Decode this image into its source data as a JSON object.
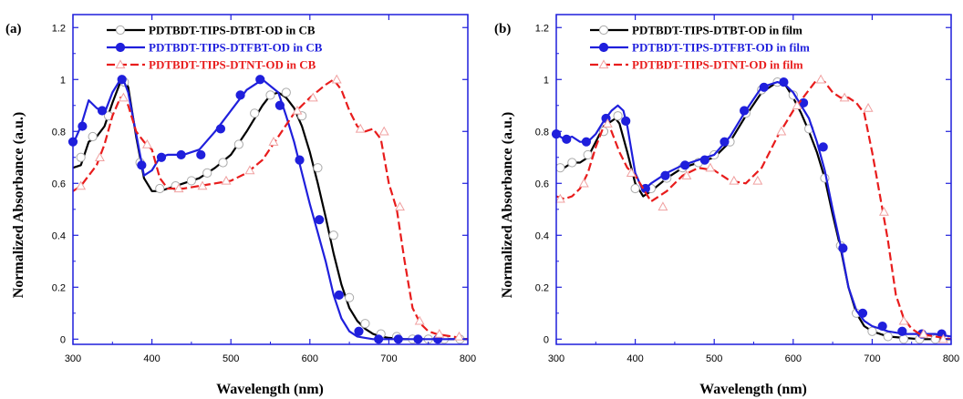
{
  "chart_data": [
    {
      "type": "line",
      "panel_label": "(a)",
      "xlabel": "Wavelength (nm)",
      "ylabel": "Normalized Absorbance (a.u.)",
      "xlim": [
        300,
        800
      ],
      "ylim": [
        -0.02,
        1.25
      ],
      "xticks": [
        300,
        400,
        500,
        600,
        700,
        800
      ],
      "yticks": [
        0,
        0.2,
        0.4,
        0.6,
        0.8,
        1,
        1.2
      ],
      "xtick_labels": [
        "300",
        "400",
        "500",
        "600",
        "700",
        "800"
      ],
      "ytick_labels": [
        "0",
        "0.2",
        "0.4",
        "0.6",
        "0.8",
        "1",
        "1.2"
      ],
      "grid": false,
      "legend_position": "top-left",
      "series": [
        {
          "name": "PDTBDT-TIPS-DTBT-OD in CB",
          "color": "#000000",
          "marker": "open-circle",
          "x": [
            300,
            310,
            320,
            330,
            340,
            350,
            360,
            365,
            370,
            380,
            390,
            400,
            410,
            420,
            440,
            460,
            480,
            500,
            520,
            540,
            550,
            560,
            570,
            580,
            590,
            600,
            610,
            620,
            630,
            640,
            650,
            660,
            670,
            680,
            690,
            700,
            720,
            740,
            760,
            780,
            800
          ],
          "y": [
            0.66,
            0.67,
            0.76,
            0.78,
            0.82,
            0.91,
            0.99,
            1.0,
            0.97,
            0.78,
            0.62,
            0.57,
            0.57,
            0.58,
            0.6,
            0.62,
            0.66,
            0.71,
            0.8,
            0.9,
            0.94,
            0.95,
            0.93,
            0.89,
            0.82,
            0.72,
            0.6,
            0.47,
            0.33,
            0.21,
            0.12,
            0.07,
            0.04,
            0.02,
            0.01,
            0.005,
            0.0,
            0.0,
            0.0,
            0.0,
            0.0
          ],
          "marker_x": [
            310,
            325,
            345,
            365,
            385,
            410,
            430,
            450,
            470,
            490,
            510,
            530,
            550,
            570,
            590,
            610,
            630,
            650,
            670,
            690,
            710,
            730,
            750,
            770,
            790
          ],
          "marker_y": [
            0.7,
            0.78,
            0.86,
            0.99,
            0.68,
            0.58,
            0.59,
            0.61,
            0.64,
            0.68,
            0.75,
            0.87,
            0.94,
            0.95,
            0.86,
            0.66,
            0.4,
            0.16,
            0.06,
            0.02,
            0.01,
            0.0,
            0.0,
            0.0,
            0.0
          ]
        },
        {
          "name": "PDTBDT-TIPS-DTFBT-OD in CB",
          "color": "#1f1fdc",
          "marker": "filled-circle",
          "x": [
            300,
            310,
            320,
            330,
            340,
            350,
            360,
            365,
            370,
            380,
            390,
            400,
            410,
            420,
            440,
            460,
            480,
            500,
            520,
            540,
            560,
            570,
            580,
            590,
            600,
            610,
            620,
            630,
            640,
            650,
            660,
            670,
            680,
            690,
            700,
            720,
            740,
            760,
            780,
            800
          ],
          "y": [
            0.75,
            0.82,
            0.92,
            0.89,
            0.87,
            0.95,
            1.0,
            0.99,
            0.95,
            0.79,
            0.63,
            0.65,
            0.7,
            0.71,
            0.71,
            0.73,
            0.8,
            0.88,
            0.96,
            1.0,
            0.95,
            0.86,
            0.76,
            0.64,
            0.52,
            0.41,
            0.3,
            0.17,
            0.08,
            0.03,
            0.01,
            0.005,
            0.0,
            0.0,
            0.0,
            0.0,
            0.0,
            0.0,
            0.0,
            0.0
          ],
          "marker_x": [
            300,
            312,
            337,
            362,
            387,
            412,
            437,
            462,
            487,
            512,
            537,
            562,
            587,
            612,
            637,
            662,
            687,
            712,
            737,
            762
          ],
          "marker_y": [
            0.76,
            0.82,
            0.88,
            1.0,
            0.67,
            0.7,
            0.71,
            0.71,
            0.81,
            0.94,
            1.0,
            0.9,
            0.69,
            0.46,
            0.17,
            0.03,
            0.0,
            0.0,
            0.0,
            0.0
          ]
        },
        {
          "name": "PDTBDT-TIPS-DTNT-OD in CB",
          "color": "#e81c1c",
          "marker": "open-triangle",
          "x": [
            300,
            310,
            320,
            330,
            340,
            350,
            360,
            365,
            370,
            380,
            390,
            400,
            410,
            420,
            440,
            460,
            480,
            500,
            520,
            540,
            560,
            580,
            600,
            620,
            630,
            640,
            650,
            660,
            670,
            680,
            690,
            700,
            710,
            720,
            730,
            740,
            750,
            760,
            780,
            800
          ],
          "y": [
            0.57,
            0.59,
            0.63,
            0.67,
            0.75,
            0.86,
            0.93,
            0.93,
            0.9,
            0.8,
            0.76,
            0.73,
            0.62,
            0.58,
            0.58,
            0.59,
            0.6,
            0.61,
            0.64,
            0.69,
            0.78,
            0.87,
            0.93,
            0.98,
            1.0,
            0.96,
            0.88,
            0.82,
            0.8,
            0.81,
            0.77,
            0.6,
            0.5,
            0.3,
            0.12,
            0.06,
            0.03,
            0.02,
            0.01,
            0.0
          ],
          "marker_x": [
            310,
            334,
            364,
            394,
            434,
            464,
            494,
            524,
            554,
            584,
            604,
            634,
            664,
            694,
            714,
            739,
            764,
            789
          ],
          "marker_y": [
            0.59,
            0.7,
            0.93,
            0.75,
            0.58,
            0.59,
            0.61,
            0.65,
            0.76,
            0.88,
            0.93,
            1.0,
            0.81,
            0.8,
            0.51,
            0.07,
            0.02,
            0.01
          ]
        }
      ]
    },
    {
      "type": "line",
      "panel_label": "(b)",
      "xlabel": "Wavelength (nm)",
      "ylabel": "Normalized Absorbance (a.u.)",
      "xlim": [
        300,
        800
      ],
      "ylim": [
        -0.02,
        1.25
      ],
      "xticks": [
        300,
        400,
        500,
        600,
        700,
        800
      ],
      "yticks": [
        0,
        0.2,
        0.4,
        0.6,
        0.8,
        1,
        1.2
      ],
      "xtick_labels": [
        "300",
        "400",
        "500",
        "600",
        "700",
        "800"
      ],
      "ytick_labels": [
        "0",
        "0.2",
        "0.4",
        "0.6",
        "0.8",
        "1",
        "1.2"
      ],
      "grid": false,
      "legend_position": "top-left",
      "series": [
        {
          "name": "PDTBDT-TIPS-DTBT-OD in film",
          "color": "#000000",
          "marker": "open-circle",
          "x": [
            300,
            310,
            320,
            330,
            340,
            350,
            360,
            370,
            375,
            380,
            390,
            400,
            410,
            420,
            440,
            460,
            480,
            500,
            520,
            540,
            560,
            580,
            590,
            600,
            610,
            620,
            630,
            640,
            650,
            660,
            670,
            680,
            690,
            700,
            720,
            740,
            760,
            780,
            800
          ],
          "y": [
            0.67,
            0.66,
            0.68,
            0.68,
            0.7,
            0.76,
            0.82,
            0.84,
            0.85,
            0.83,
            0.72,
            0.6,
            0.55,
            0.57,
            0.62,
            0.66,
            0.68,
            0.7,
            0.76,
            0.86,
            0.95,
            0.99,
            0.98,
            0.93,
            0.87,
            0.8,
            0.72,
            0.62,
            0.48,
            0.35,
            0.2,
            0.1,
            0.05,
            0.03,
            0.01,
            0.005,
            0.0,
            0.0,
            0.0
          ],
          "marker_x": [
            305,
            320,
            340,
            360,
            378,
            400,
            420,
            440,
            460,
            480,
            500,
            520,
            540,
            560,
            580,
            600,
            620,
            640,
            660,
            680,
            700,
            720,
            740,
            760,
            780
          ],
          "marker_y": [
            0.66,
            0.68,
            0.71,
            0.8,
            0.86,
            0.58,
            0.58,
            0.62,
            0.66,
            0.68,
            0.71,
            0.76,
            0.87,
            0.96,
            0.99,
            0.94,
            0.81,
            0.62,
            0.36,
            0.1,
            0.03,
            0.01,
            0.0,
            0.0,
            0.0
          ]
        },
        {
          "name": "PDTBDT-TIPS-DTFBT-OD in film",
          "color": "#1f1fdc",
          "marker": "filled-circle",
          "x": [
            300,
            310,
            320,
            330,
            340,
            350,
            360,
            370,
            378,
            385,
            390,
            400,
            410,
            420,
            440,
            460,
            480,
            500,
            520,
            540,
            560,
            580,
            590,
            600,
            610,
            620,
            630,
            640,
            650,
            660,
            670,
            680,
            690,
            700,
            720,
            740,
            760,
            780,
            800
          ],
          "y": [
            0.79,
            0.77,
            0.78,
            0.76,
            0.76,
            0.79,
            0.84,
            0.88,
            0.9,
            0.88,
            0.82,
            0.64,
            0.57,
            0.6,
            0.64,
            0.67,
            0.69,
            0.71,
            0.78,
            0.88,
            0.97,
            0.99,
            0.98,
            0.95,
            0.9,
            0.85,
            0.76,
            0.65,
            0.5,
            0.36,
            0.2,
            0.11,
            0.07,
            0.05,
            0.03,
            0.02,
            0.02,
            0.02,
            0.01
          ],
          "marker_x": [
            300,
            313,
            338,
            363,
            388,
            413,
            438,
            463,
            488,
            513,
            538,
            563,
            588,
            613,
            638,
            663,
            688,
            713,
            738,
            763,
            788
          ],
          "marker_y": [
            0.79,
            0.77,
            0.76,
            0.85,
            0.84,
            0.58,
            0.63,
            0.67,
            0.69,
            0.76,
            0.88,
            0.97,
            0.99,
            0.91,
            0.74,
            0.35,
            0.1,
            0.05,
            0.03,
            0.02,
            0.02
          ]
        },
        {
          "name": "PDTBDT-TIPS-DTNT-OD in film",
          "color": "#e81c1c",
          "marker": "open-triangle",
          "x": [
            300,
            310,
            320,
            330,
            340,
            350,
            360,
            365,
            370,
            380,
            390,
            400,
            410,
            420,
            440,
            460,
            480,
            500,
            520,
            540,
            560,
            580,
            600,
            620,
            630,
            640,
            650,
            660,
            670,
            680,
            690,
            700,
            710,
            720,
            730,
            740,
            750,
            760,
            780,
            800
          ],
          "y": [
            0.55,
            0.54,
            0.55,
            0.58,
            0.64,
            0.74,
            0.82,
            0.83,
            0.8,
            0.72,
            0.66,
            0.63,
            0.58,
            0.53,
            0.57,
            0.63,
            0.66,
            0.65,
            0.61,
            0.6,
            0.66,
            0.78,
            0.88,
            0.96,
            1.0,
            0.99,
            0.95,
            0.93,
            0.93,
            0.91,
            0.87,
            0.72,
            0.55,
            0.38,
            0.17,
            0.08,
            0.04,
            0.02,
            0.01,
            0.0
          ],
          "marker_x": [
            305,
            335,
            365,
            395,
            435,
            465,
            495,
            525,
            555,
            585,
            605,
            635,
            665,
            695,
            715,
            740,
            765,
            790
          ],
          "marker_y": [
            0.54,
            0.6,
            0.83,
            0.64,
            0.51,
            0.63,
            0.66,
            0.61,
            0.61,
            0.8,
            0.9,
            1.0,
            0.93,
            0.89,
            0.49,
            0.07,
            0.02,
            0.0
          ]
        }
      ]
    }
  ]
}
